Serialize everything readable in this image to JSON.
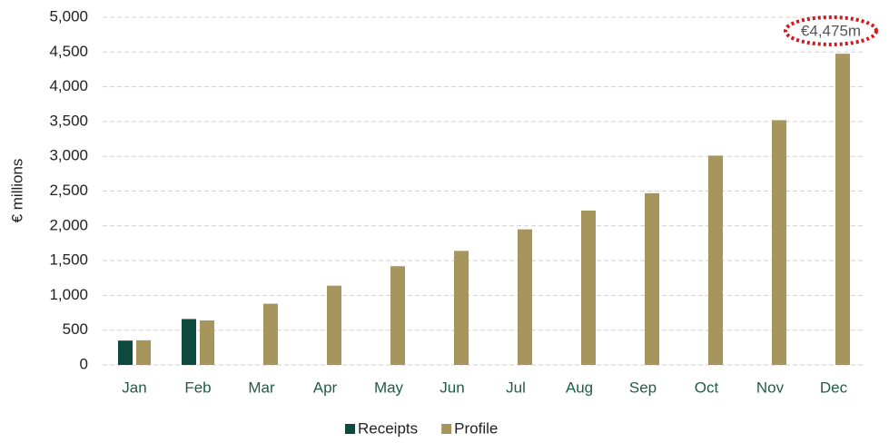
{
  "chart_data": {
    "type": "bar",
    "y_label": "€ millions",
    "annotation": "€4,475m",
    "categories": [
      "Jan",
      "Feb",
      "Mar",
      "Apr",
      "May",
      "Jun",
      "Jul",
      "Aug",
      "Sep",
      "Oct",
      "Nov",
      "Dec"
    ],
    "series": [
      {
        "name": "Receipts",
        "color": "#0b4a3d",
        "values": [
          350,
          660,
          null,
          null,
          null,
          null,
          null,
          null,
          null,
          null,
          null,
          null
        ]
      },
      {
        "name": "Profile",
        "color": "#a6955d",
        "values": [
          355,
          640,
          880,
          1140,
          1420,
          1640,
          1950,
          2220,
          2470,
          3010,
          3520,
          4475
        ]
      }
    ],
    "ylim": [
      0,
      5000
    ],
    "yticks": [
      0,
      500,
      {
        "value": 1000,
        "label": "1,000"
      },
      {
        "value": 1500,
        "label": "1,500"
      },
      {
        "value": 2000,
        "label": "2,000"
      },
      {
        "value": 2500,
        "label": "2,500"
      },
      {
        "value": 3000,
        "label": "3,000"
      },
      {
        "value": 3500,
        "label": "3,500"
      },
      {
        "value": 4000,
        "label": "4,000"
      },
      {
        "value": 4500,
        "label": "4,500"
      },
      {
        "value": 5000,
        "label": "5,000"
      }
    ],
    "grid": true,
    "legend": "bottom"
  }
}
